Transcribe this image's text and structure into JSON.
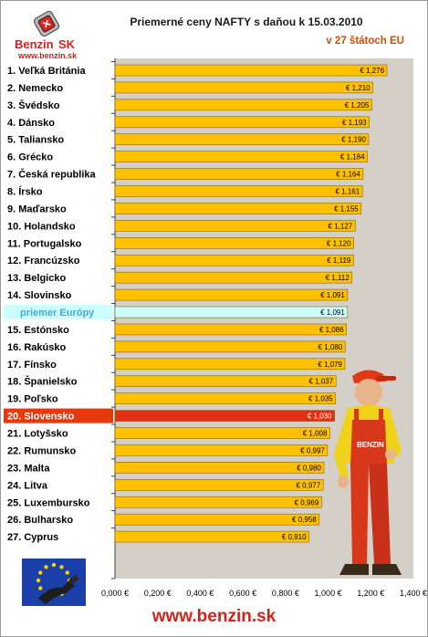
{
  "header": {
    "logo_text": "Benzin",
    "logo_text_sk": "SK",
    "logo_url": "www.benzin.sk",
    "title": "Priemerné ceny NAFTY s daňou k 15.03.2010",
    "subtitle": "v 27 štátoch EU"
  },
  "footer": {
    "url": "www.benzin.sk"
  },
  "colors": {
    "bar": "#ffc000",
    "bar_border": "#8a6a00",
    "highlight_bar": "#e03010",
    "highlight_label": "#e8380e",
    "average_bar": "#ccffff",
    "average_label": "#4aa8d8",
    "plot_bg": "#d4d0c8",
    "url_red": "#d2231a",
    "subtitle_orange": "#c8500a"
  },
  "icons": [
    "benzin-logo-icon",
    "eu-flag-fuel-icon",
    "mechanic-figure-icon"
  ],
  "chart_data": {
    "type": "bar",
    "orientation": "horizontal",
    "title": "Priemerné ceny NAFTY s daňou k 15.03.2010",
    "subtitle": "v 27 štátoch EU",
    "xlim": [
      0,
      1.4
    ],
    "x_ticks": [
      "0,000 €",
      "0,200 €",
      "0,400 €",
      "0,600 €",
      "0,800 €",
      "1,000 €",
      "1,200 €",
      "1,400 €"
    ],
    "categories": [
      "1. Veľká Británia",
      "2. Nemecko",
      "3. Švédsko",
      "4. Dánsko",
      "5. Taliansko",
      "6. Grécko",
      "7. Česká republika",
      "8. Írsko",
      "9. Maďarsko",
      "10. Holandsko",
      "11. Portugalsko",
      "12. Francúzsko",
      "13. Belgicko",
      "14. Slovinsko",
      "priemer Európy",
      "15. Estónsko",
      "16. Rakúsko",
      "17. Fínsko",
      "18. Španielsko",
      "19. Poľsko",
      "20. Slovensko",
      "21. Lotyšsko",
      "22. Rumunsko",
      "23. Malta",
      "24. Litva",
      "25. Luxembursko",
      "26. Bulharsko",
      "27. Cyprus"
    ],
    "values": [
      1.276,
      1.21,
      1.205,
      1.193,
      1.19,
      1.184,
      1.164,
      1.161,
      1.155,
      1.127,
      1.12,
      1.119,
      1.112,
      1.091,
      1.091,
      1.086,
      1.08,
      1.079,
      1.037,
      1.035,
      1.03,
      1.008,
      0.997,
      0.98,
      0.977,
      0.969,
      0.958,
      0.91
    ],
    "value_labels": [
      "€ 1,276",
      "€ 1,210",
      "€ 1,205",
      "€ 1,193",
      "€ 1,190",
      "€ 1,184",
      "€ 1,164",
      "€ 1,161",
      "€ 1,155",
      "€ 1,127",
      "€ 1,120",
      "€ 1,119",
      "€ 1,112",
      "€ 1,091",
      "€ 1,091",
      "€ 1,086",
      "€ 1,080",
      "€ 1,079",
      "€ 1,037",
      "€ 1,035",
      "€ 1,030",
      "€ 1,008",
      "€ 0,997",
      "€ 0,980",
      "€ 0,977",
      "€ 0,969",
      "€ 0,958",
      "€ 0,910"
    ],
    "average_index": 14,
    "highlight_index": 20,
    "grid": false
  }
}
